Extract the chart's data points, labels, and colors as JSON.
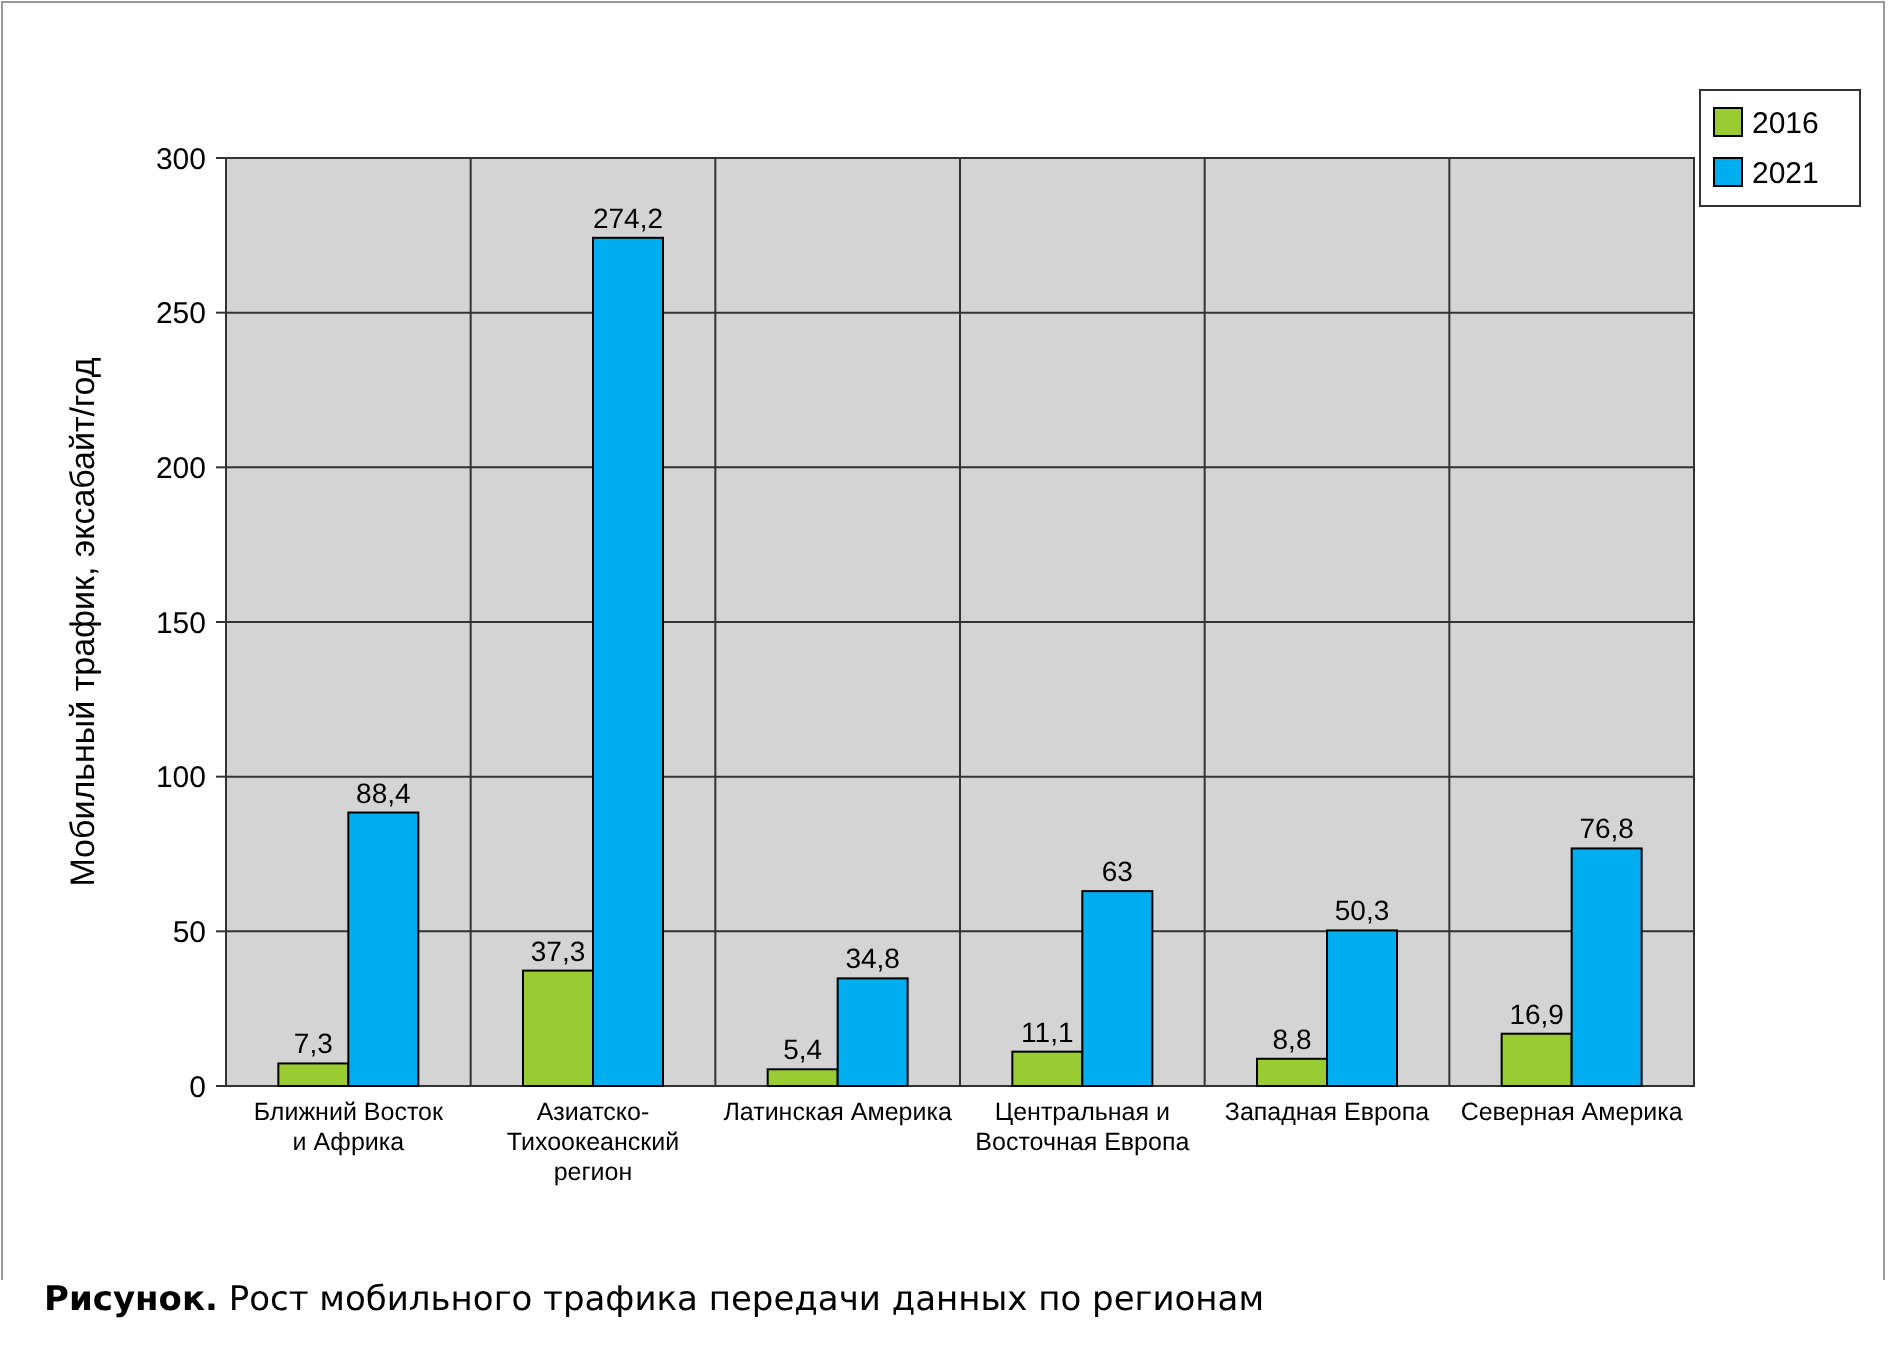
{
  "chart_data": {
    "type": "bar",
    "ylabel": "Мобильный трафик, эксабайт/год",
    "categories": [
      "Ближний Восток\nи Африка",
      "Азиатско-\nТихоокеанский\nрегион",
      "Латинская Америка",
      "Центральная и\nВосточная Европа",
      "Западная Европа",
      "Северная Америка"
    ],
    "series": [
      {
        "name": "2016",
        "color": "#99cc33",
        "values": [
          7.3,
          37.3,
          5.4,
          11.1,
          8.8,
          16.9
        ],
        "value_labels": [
          "7,3",
          "37,3",
          "5,4",
          "11,1",
          "8,8",
          "16,9"
        ]
      },
      {
        "name": "2021",
        "color": "#00aeef",
        "values": [
          88.4,
          274.2,
          34.8,
          63,
          50.3,
          76.8
        ],
        "value_labels": [
          "88,4",
          "274,2",
          "34,8",
          "63",
          "50,3",
          "76,8"
        ]
      }
    ],
    "ylim": [
      0,
      300
    ],
    "yticks": [
      0,
      50,
      100,
      150,
      200,
      250,
      300
    ],
    "grid": "y",
    "legend": "top right",
    "annotations": [
      "Рисунок. Рост мобильного трафика передачи данных по регионам"
    ]
  }
}
